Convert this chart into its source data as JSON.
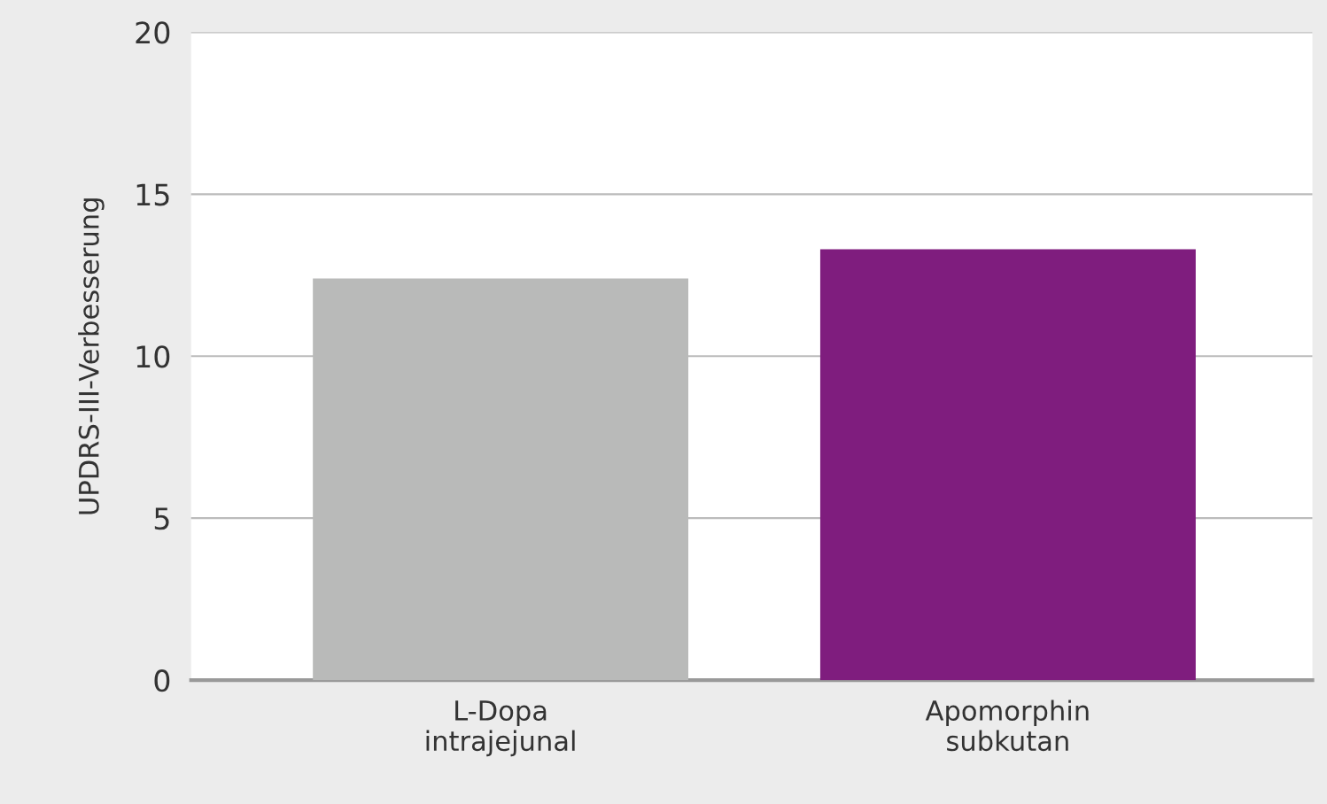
{
  "chart_data": {
    "type": "bar",
    "ylabel": "UPDRS-III-Verbesserung",
    "categories": [
      "L-Dopa\nintrajejunal",
      "Apomorphin\nsubkutan"
    ],
    "values": [
      12.4,
      13.3
    ],
    "colors": [
      "#b9bab9",
      "#7f1d7e"
    ],
    "ylim": [
      0,
      20
    ],
    "yticks": [
      0,
      5,
      10,
      15,
      20
    ],
    "grid": "y",
    "legend": false
  }
}
